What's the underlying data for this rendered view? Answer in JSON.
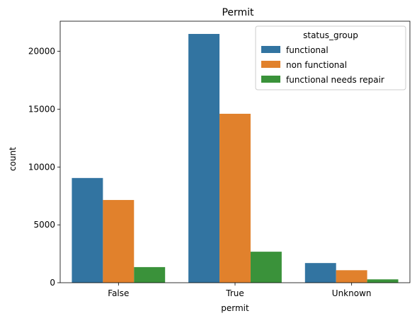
{
  "chart_data": {
    "type": "bar",
    "title": "Permit",
    "xlabel": "permit",
    "ylabel": "count",
    "categories": [
      "False",
      "True",
      "Unknown"
    ],
    "ylim": [
      0,
      22600
    ],
    "yticks": [
      0,
      5000,
      10000,
      15000,
      20000
    ],
    "ytick_labels": [
      "0",
      "5000",
      "10000",
      "15000",
      "20000"
    ],
    "grid": false,
    "legend": {
      "title": "status_group",
      "placement": "top-right"
    },
    "series": [
      {
        "name": "functional",
        "color": "#3274a1",
        "values": [
          9050,
          21500,
          1700
        ]
      },
      {
        "name": "non functional",
        "color": "#e1812c",
        "values": [
          7150,
          14600,
          1080
        ]
      },
      {
        "name": "functional needs repair",
        "color": "#3a923a",
        "values": [
          1350,
          2680,
          290
        ]
      }
    ]
  }
}
